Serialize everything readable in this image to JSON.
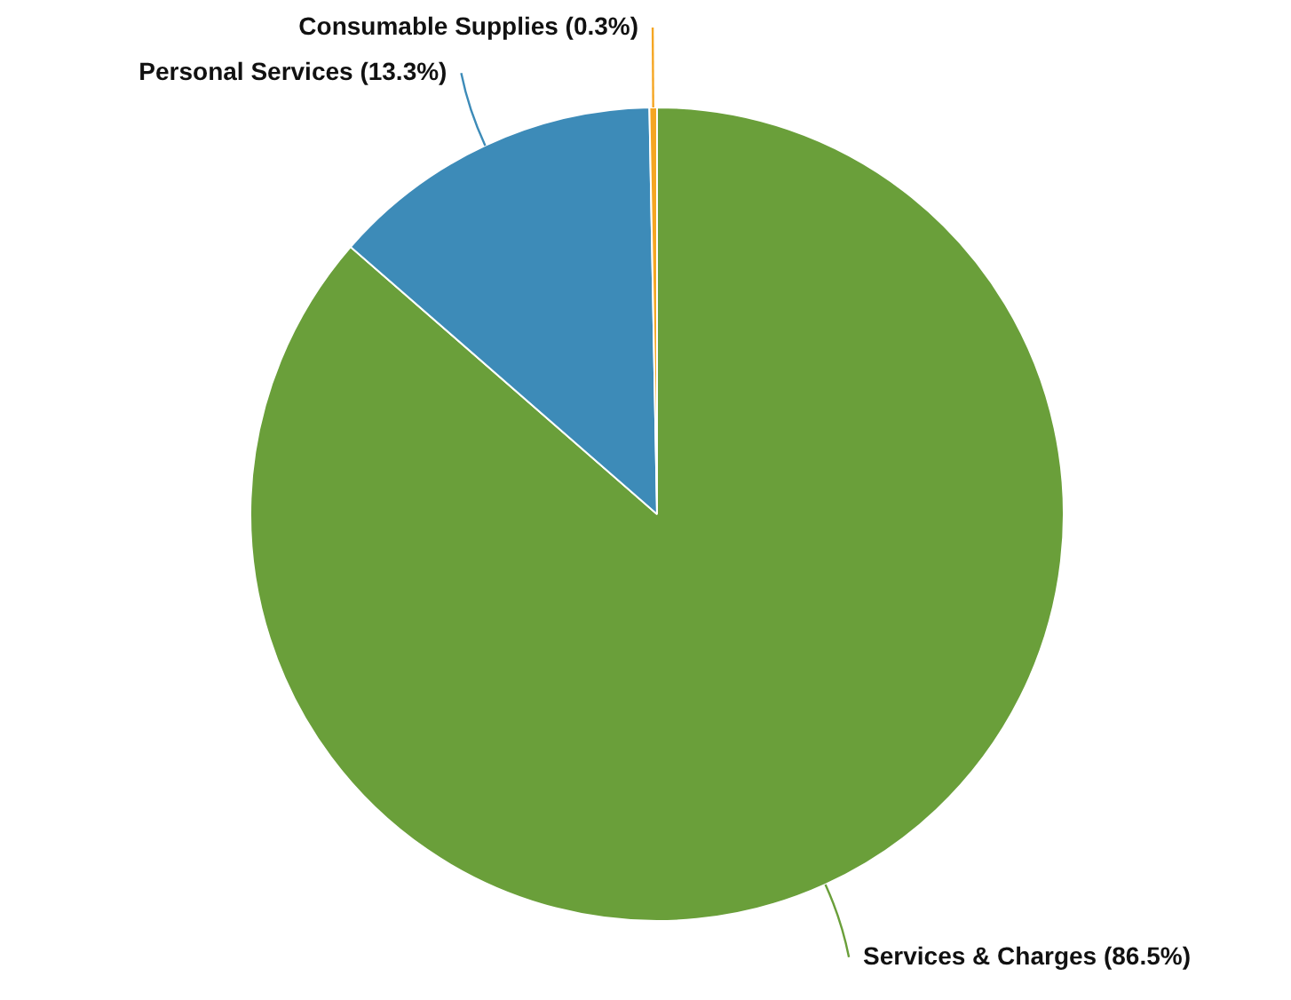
{
  "chart_data": {
    "type": "pie",
    "categories": [
      "Services & Charges",
      "Personal Services",
      "Consumable Supplies"
    ],
    "values": [
      86.5,
      13.3,
      0.3
    ],
    "colors": [
      "#6a9f3a",
      "#3d8bb8",
      "#f5a623"
    ],
    "value_labels": [
      "(86.5%)",
      "(13.3%)",
      "(0.3%)"
    ],
    "legend": false
  }
}
